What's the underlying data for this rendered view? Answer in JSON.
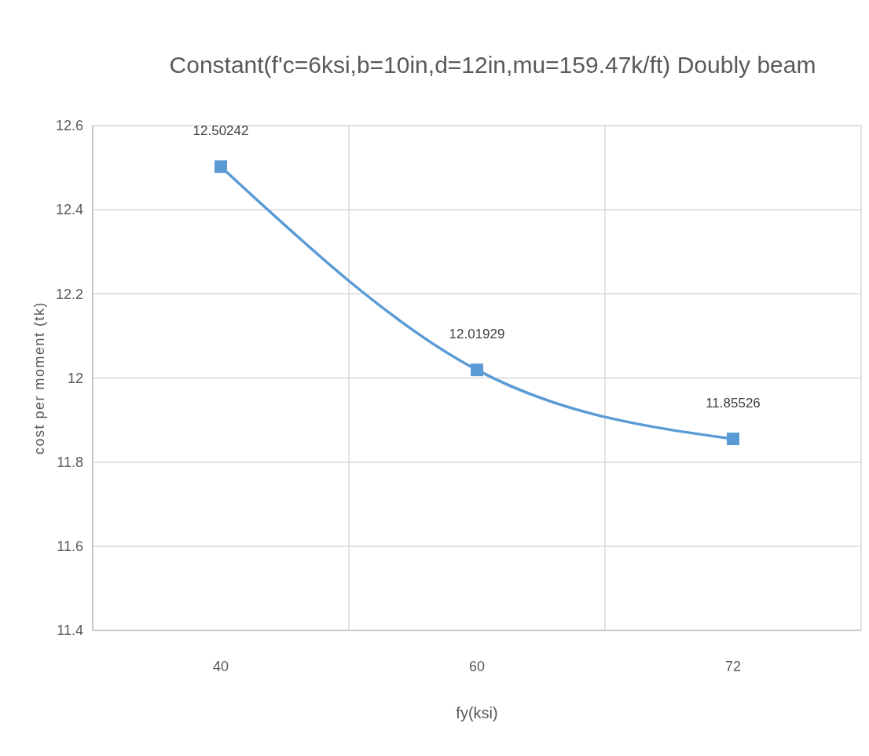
{
  "chart_data": {
    "type": "line",
    "title": "Constant(f'c=6ksi,b=10in,d=12in,mu=159.47k/ft) Doubly beam",
    "xlabel": "fy(ksi)",
    "ylabel": "cost per moment (tk)",
    "categories": [
      "40",
      "60",
      "72"
    ],
    "series": [
      {
        "color": "#5b9bd5",
        "values": [
          12.50242,
          12.01929,
          11.85526
        ]
      }
    ],
    "ylim": [
      11.4,
      12.6
    ],
    "yticks": [
      11.4,
      11.6,
      11.8,
      12,
      12.2,
      12.4,
      12.6
    ],
    "grid": true,
    "marker": "square",
    "line_style": "solid",
    "data_labels": true
  }
}
